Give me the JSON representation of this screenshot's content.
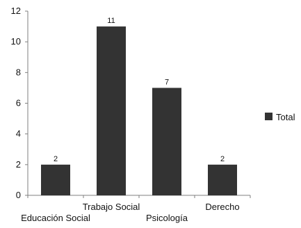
{
  "chart_data": {
    "type": "bar",
    "categories": [
      "Educación Social",
      "Trabajo Social",
      "Psicología",
      "Derecho"
    ],
    "series": [
      {
        "name": "Total",
        "values": [
          2,
          11,
          7,
          2
        ]
      }
    ],
    "data_labels": [
      "2",
      "11",
      "7",
      "2"
    ],
    "y_ticks": [
      "0",
      "2",
      "4",
      "6",
      "8",
      "10",
      "12"
    ],
    "ylim": [
      0,
      12
    ],
    "grid": false,
    "legend": {
      "position": "right",
      "entries": [
        "Total"
      ]
    },
    "colors": {
      "bar": "#333333",
      "axis": "#7f7f7f",
      "text": "#111111"
    }
  }
}
